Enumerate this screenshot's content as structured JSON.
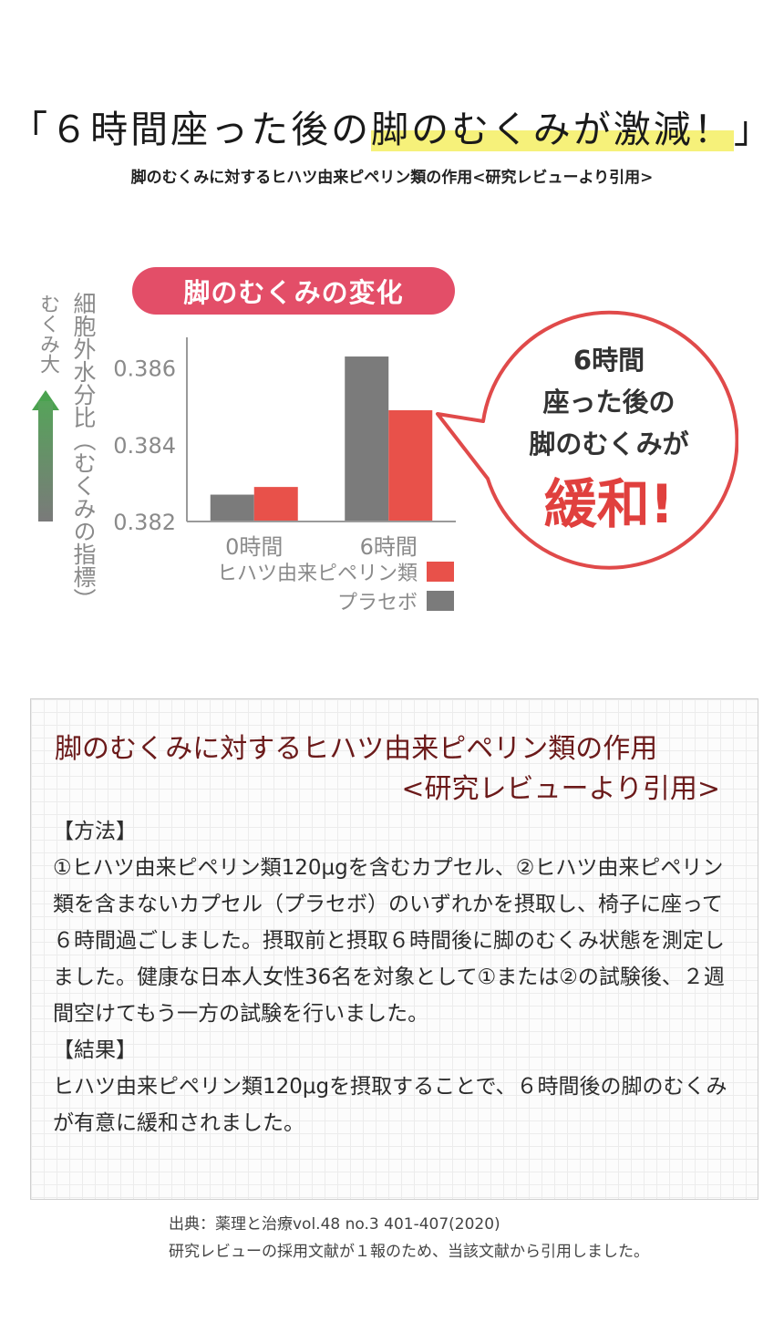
{
  "headline": {
    "open": "「",
    "part1": "６時間座った後の",
    "part2": "脚のむくみが激減！",
    "close": "」"
  },
  "subheadline": "脚のむくみに対するヒハツ由来ピペリン類の作用<研究レビューより引用>",
  "chart_badge": "脚のむくみの変化",
  "y_axis_title": "細胞外水分比（むくみの指標）",
  "swelling_label": "むくみ大",
  "callout": {
    "line1": "6時間",
    "line2": "座った後の",
    "line3": "脚のむくみが",
    "big": "緩和!"
  },
  "chart_data": {
    "type": "bar",
    "categories": [
      "0時間",
      "6時間"
    ],
    "series": [
      {
        "name": "プラセボ",
        "values": [
          0.3827,
          0.3863
        ]
      },
      {
        "name": "ヒハツ由来ピペリン類",
        "values": [
          0.3829,
          0.3849
        ]
      }
    ],
    "ylim": [
      0.382,
      0.3868
    ],
    "y_ticks": [
      "0.382",
      "0.384",
      "0.386"
    ],
    "ylabel": "細胞外水分比（むくみの指標）",
    "legend": [
      {
        "label": "ヒハツ由来ピペリン類",
        "color": "#e8514a"
      },
      {
        "label": "プラセボ",
        "color": "#7b7b7b"
      }
    ],
    "legend_position": "bottom-right",
    "colors": {
      "placebo": "#7b7b7b",
      "piperine": "#e8514a"
    }
  },
  "review": {
    "title_line1": "脚のむくみに対するヒハツ由来ピペリン類の作用",
    "title_line2": "<研究レビューより引用>",
    "method_heading": "【方法】",
    "method_text": "①ヒハツ由来ピペリン類120μgを含むカプセル、②ヒハツ由来ピペリン類を含まないカプセル（プラセボ）のいずれかを摂取し、椅子に座って６時間過ごしました。摂取前と摂取６時間後に脚のむくみ状態を測定しました。健康な日本人女性36名を対象として①または②の試験後、２週間空けてもう一方の試験を行いました。",
    "result_heading": "【結果】",
    "result_text": "ヒハツ由来ピペリン類120μgを摂取することで、６時間後の脚のむくみが有意に緩和されました。"
  },
  "footnote": {
    "source": "出典：薬理と治療vol.48 no.3 401-407(2020)",
    "note": "研究レビューの採用文献が１報のため、当該文献から引用しました。"
  }
}
